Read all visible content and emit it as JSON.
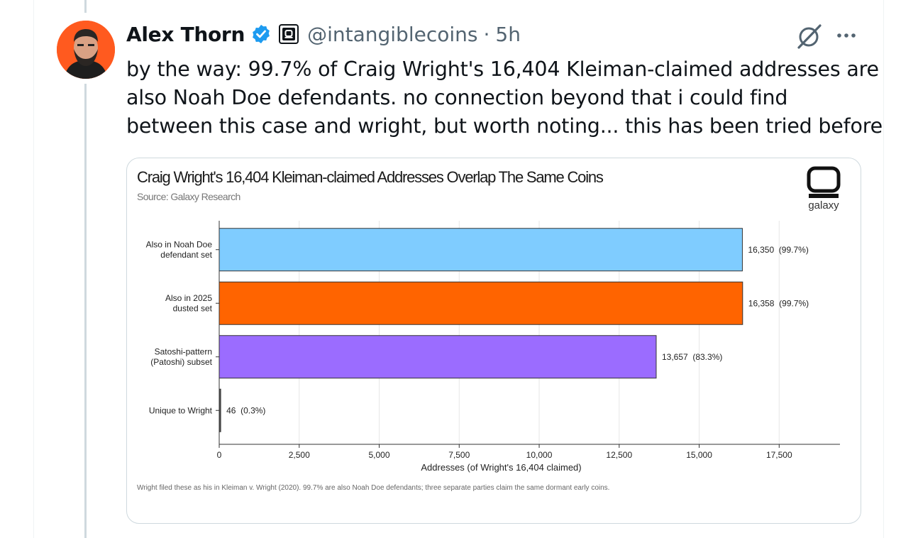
{
  "author": {
    "name": "Alex Thorn",
    "handle": "@intangiblecoins",
    "separator": "·",
    "time": "5h"
  },
  "icons": {
    "verified": "verified-badge-icon",
    "affiliate": "galaxy-affiliate-icon",
    "grok": "grok-icon",
    "more": "more-icon"
  },
  "tweet": {
    "lines": [
      "by the way: 99.7% of Craig Wright's 16,404 Kleiman-claimed addresses are",
      "also Noah Doe defendants. no connection beyond that i could find",
      "between this case and wright, but worth noting... this has been tried before"
    ]
  },
  "colors": {
    "verified": "#1d9bf0",
    "series": [
      "#7fccff",
      "#ff6400",
      "#9b6cff",
      "#555555"
    ]
  },
  "chart_data": {
    "type": "bar",
    "orientation": "horizontal",
    "title": "Craig Wright's 16,404 Kleiman-claimed Addresses Overlap The Same Coins",
    "subtitle": "Source: Galaxy Research",
    "brand": "galaxy",
    "categories": [
      [
        "Also in Noah Doe",
        "defendant set"
      ],
      [
        "Also in 2025",
        "dusted set"
      ],
      [
        "Satoshi-pattern",
        "(Patoshi) subset"
      ],
      [
        "Unique to Wright"
      ]
    ],
    "values": [
      16350,
      16358,
      13657,
      46
    ],
    "labels": [
      "16,350  (99.7%)",
      "16,358  (99.7%)",
      "13,657  (83.3%)",
      "46  (0.3%)"
    ],
    "xlabel": "Addresses (of Wright's 16,404 claimed)",
    "xlim": [
      0,
      19400
    ],
    "xticks": [
      0,
      2500,
      5000,
      7500,
      10000,
      12500,
      15000,
      17500
    ],
    "xtick_labels": [
      "0",
      "2,500",
      "5,000",
      "7,500",
      "10,000",
      "12,500",
      "15,000",
      "17,500"
    ],
    "grid": true,
    "footnote": "Wright filed these as his in Kleiman v. Wright (2020). 99.7% are also Noah Doe defendants; three separate parties claim the same dormant early coins."
  }
}
